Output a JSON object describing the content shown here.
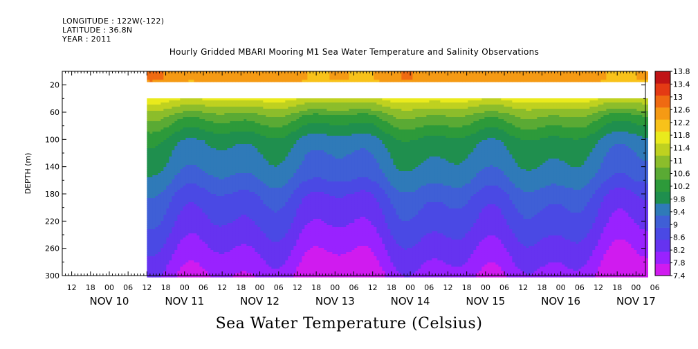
{
  "header": {
    "longitude": "LONGITUDE : 122W(-122)",
    "latitude": "LATITUDE : 36.8N",
    "year": "YEAR : 2011"
  },
  "title": "Hourly Gridded MBARI Mooring M1 Sea Water Temperature and Salinity Observations",
  "footer_title": "Sea Water Temperature (Celsius)",
  "chart_data": {
    "type": "heatmap",
    "title": "Hourly Gridded MBARI Mooring M1 Sea Water Temperature and Salinity Observations",
    "ylabel": "DEPTH (m)",
    "xlabel": "",
    "x_start_hours": -9,
    "x_end_hours": 177,
    "ylim": [
      300,
      0
    ],
    "yticks": [
      20,
      60,
      100,
      140,
      180,
      220,
      260,
      300
    ],
    "x_hour_ticks": [
      "12",
      "18",
      "00",
      "06",
      "12",
      "18",
      "00",
      "06",
      "12",
      "18",
      "00",
      "06",
      "12",
      "18",
      "00",
      "06",
      "12",
      "18",
      "00",
      "06",
      "12",
      "18",
      "00",
      "06",
      "12",
      "18",
      "00",
      "06",
      "12",
      "18",
      "00",
      "06"
    ],
    "x_date_labels": [
      "NOV 10",
      "NOV 11",
      "NOV 12",
      "NOV 13",
      "NOV 14",
      "NOV 15",
      "NOV 16",
      "NOV 17"
    ],
    "data_start_hour": 18,
    "missing_depth_band": [
      13,
      39
    ],
    "colorbar": {
      "levels": [
        7.4,
        7.8,
        8.2,
        8.6,
        9,
        9.4,
        9.8,
        10.2,
        10.6,
        11,
        11.4,
        11.8,
        12.2,
        12.6,
        13,
        13.4,
        13.8
      ],
      "colors": [
        "#d01bef",
        "#9922ff",
        "#6633f0",
        "#4a49e4",
        "#3f5fd6",
        "#2f7ab8",
        "#1f8f4e",
        "#2d9a3a",
        "#5aaa34",
        "#8cbd2b",
        "#bfd120",
        "#eaea1c",
        "#f8c21a",
        "#f59a14",
        "#ef6a12",
        "#e43a14",
        "#c01416"
      ],
      "labels": [
        "7.4",
        "7.8",
        "8.2",
        "8.6",
        "9",
        "9.4",
        "9.8",
        "10.2",
        "10.6",
        "11",
        "11.4",
        "11.8",
        "12.2",
        "12.6",
        "13",
        "13.4",
        "13.8"
      ]
    },
    "profile": {
      "depth": [
        10,
        13,
        39,
        45,
        55,
        65,
        80,
        100,
        120,
        140,
        160,
        180,
        200,
        220,
        240,
        260,
        280,
        300
      ],
      "temp": [
        12.8,
        12.7,
        11.9,
        11.6,
        11.2,
        10.8,
        10.4,
        9.9,
        9.7,
        9.55,
        9.3,
        8.95,
        8.75,
        8.6,
        8.4,
        8.2,
        8.0,
        7.8
      ]
    }
  }
}
